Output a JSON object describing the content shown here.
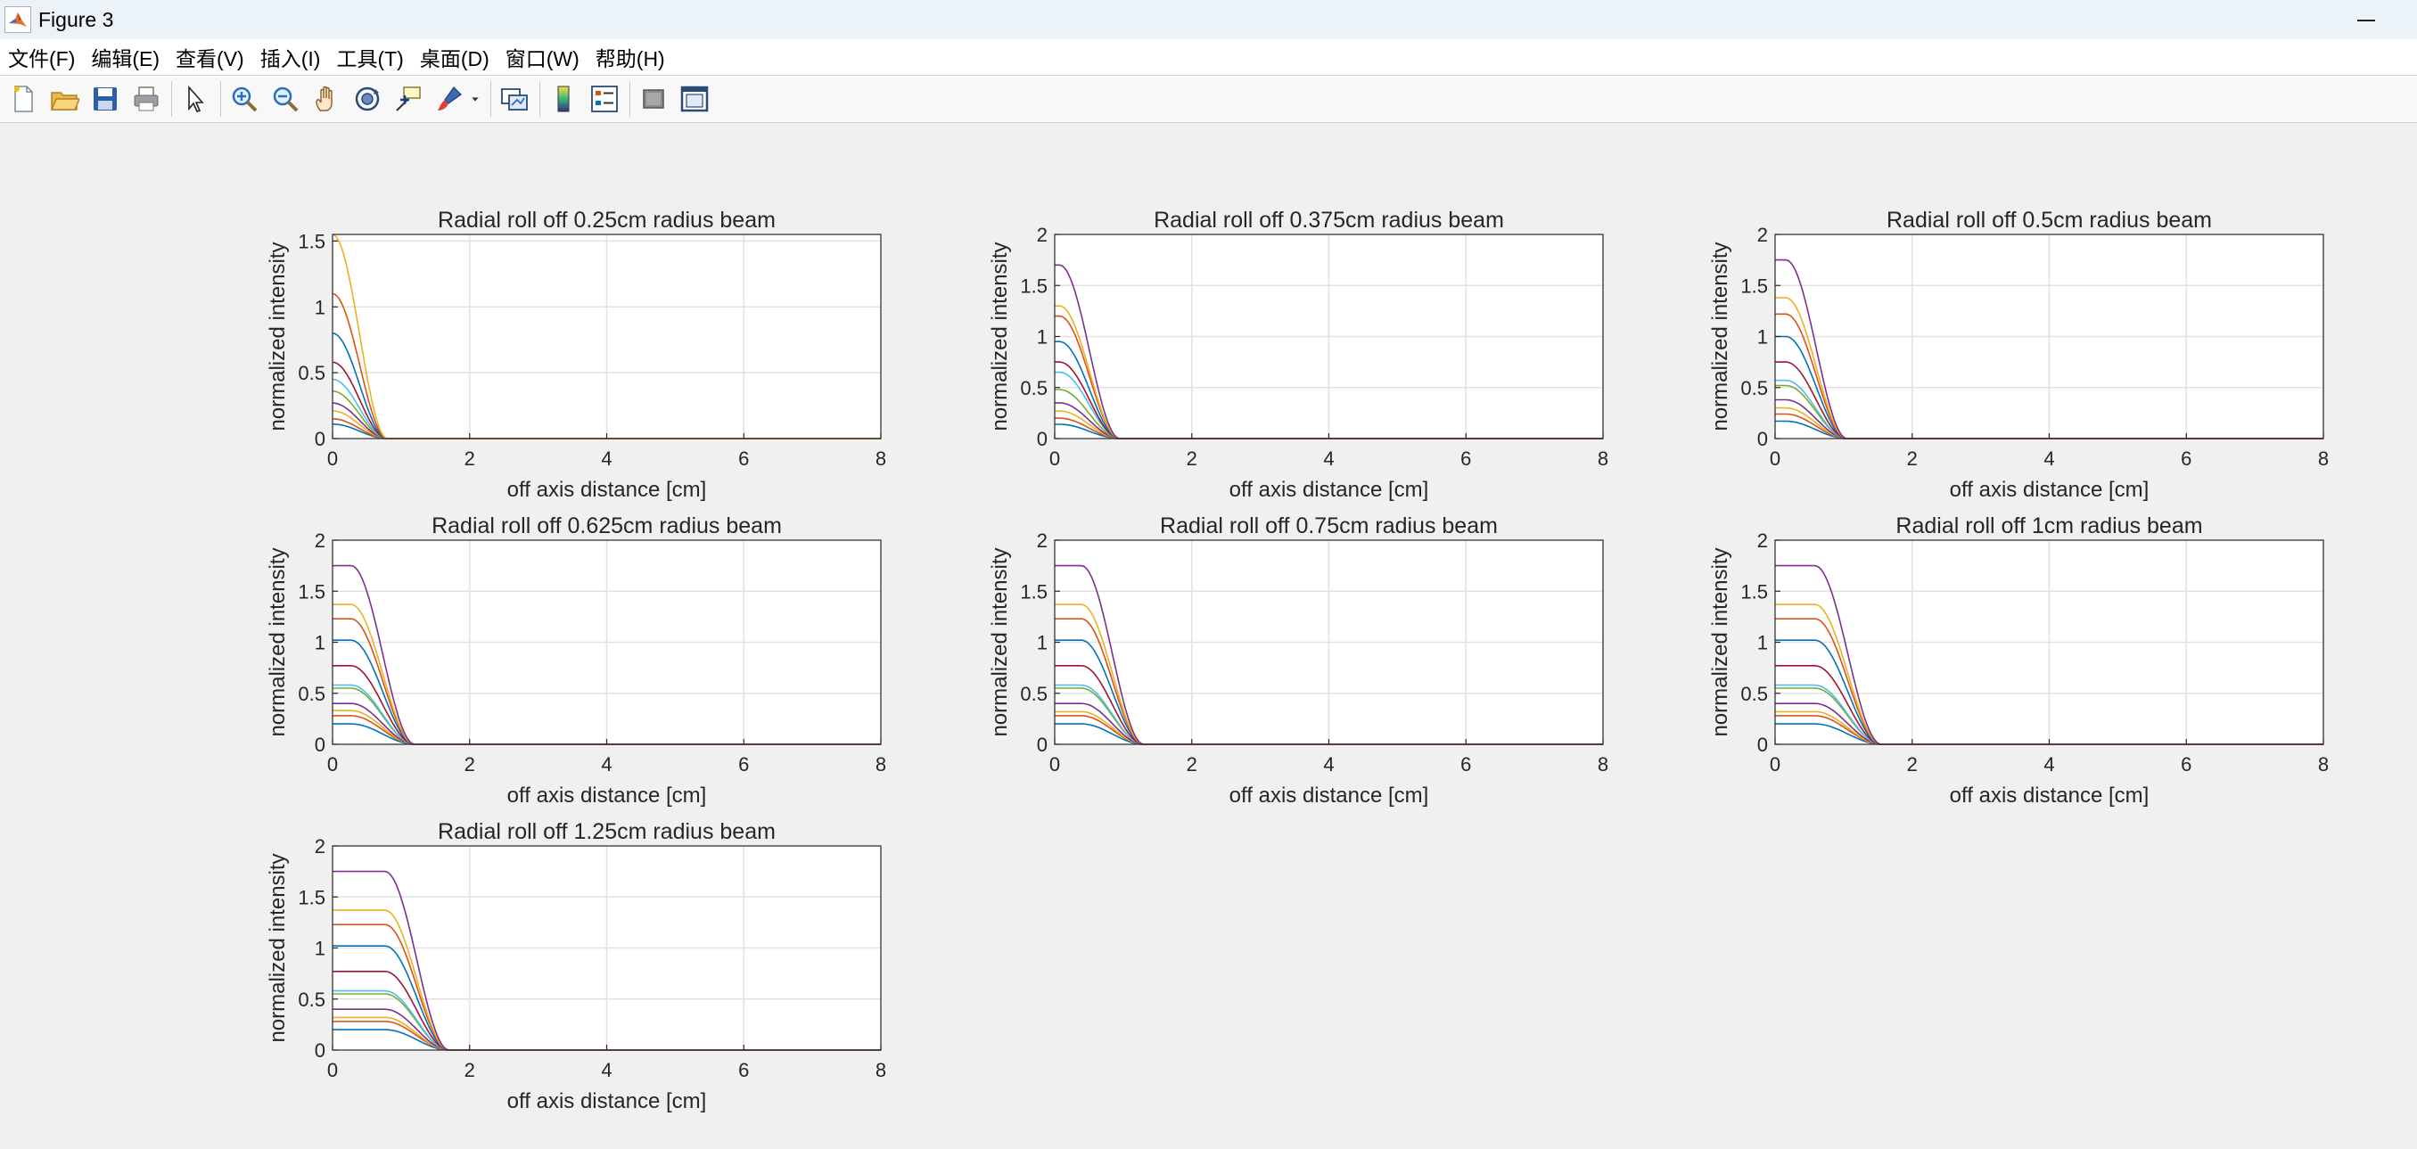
{
  "window": {
    "title": "Figure 3"
  },
  "menu": [
    "文件(F)",
    "编辑(E)",
    "查看(V)",
    "插入(I)",
    "工具(T)",
    "桌面(D)",
    "窗口(W)",
    "帮助(H)"
  ],
  "toolbar": [
    {
      "icon": "new-figure-icon"
    },
    {
      "icon": "open-file-icon"
    },
    {
      "icon": "save-icon"
    },
    {
      "icon": "print-icon"
    },
    {
      "sep": true
    },
    {
      "icon": "pointer-icon"
    },
    {
      "sep": true
    },
    {
      "icon": "zoom-in-icon"
    },
    {
      "icon": "zoom-out-icon"
    },
    {
      "icon": "pan-hand-icon"
    },
    {
      "icon": "rotate-3d-icon"
    },
    {
      "icon": "data-cursor-icon"
    },
    {
      "icon": "brush-icon"
    },
    {
      "icon": "dropdown-arrow-icon"
    },
    {
      "sep": true
    },
    {
      "icon": "link-plot-icon"
    },
    {
      "sep": true
    },
    {
      "icon": "colorbar-icon"
    },
    {
      "icon": "legend-icon"
    },
    {
      "sep": true
    },
    {
      "icon": "hide-plot-tools-icon"
    },
    {
      "icon": "show-plot-tools-icon"
    }
  ],
  "series_colors": [
    "#0072BD",
    "#D95319",
    "#EDB120",
    "#7E2F8E",
    "#77AC30",
    "#4DBEEE",
    "#A2142F"
  ],
  "chart_data": [
    {
      "type": "line",
      "title": "Radial roll off 0.25cm radius beam",
      "xlabel": "off axis distance [cm]",
      "ylabel": "normalized intensity",
      "xlim": [
        0,
        8
      ],
      "ylim": [
        0,
        1.55
      ],
      "xticks": [
        0,
        2,
        4,
        6,
        8
      ],
      "yticks": [
        0,
        0.5,
        1,
        1.5
      ],
      "ytick_labels": [
        "0",
        "0.5",
        "1",
        "1.5"
      ],
      "grid": true,
      "rolloff_end": 0.8,
      "series_peaks": [
        0.11,
        0.15,
        0.21,
        0.27,
        0.36,
        0.45,
        0.58,
        0.8,
        1.1,
        1.55
      ]
    },
    {
      "type": "line",
      "title": "Radial roll off 0.375cm radius beam",
      "xlabel": "off axis distance [cm]",
      "ylabel": "normalized intensity",
      "xlim": [
        0,
        8
      ],
      "ylim": [
        0,
        2
      ],
      "xticks": [
        0,
        2,
        4,
        6,
        8
      ],
      "yticks": [
        0,
        0.5,
        1,
        1.5,
        2
      ],
      "ytick_labels": [
        "0",
        "0.5",
        "1",
        "1.5",
        "2"
      ],
      "grid": true,
      "rolloff_end": 0.95,
      "series_peaks": [
        0.14,
        0.2,
        0.27,
        0.35,
        0.48,
        0.65,
        0.75,
        0.95,
        1.2,
        1.3,
        1.7
      ]
    },
    {
      "type": "line",
      "title": "Radial roll off 0.5cm radius beam",
      "xlabel": "off axis distance [cm]",
      "ylabel": "normalized intensity",
      "xlim": [
        0,
        8
      ],
      "ylim": [
        0,
        2
      ],
      "xticks": [
        0,
        2,
        4,
        6,
        8
      ],
      "yticks": [
        0,
        0.5,
        1,
        1.5,
        2
      ],
      "ytick_labels": [
        "0",
        "0.5",
        "1",
        "1.5",
        "2"
      ],
      "grid": true,
      "rolloff_end": 1.05,
      "series_peaks": [
        0.17,
        0.24,
        0.3,
        0.38,
        0.52,
        0.57,
        0.75,
        1.0,
        1.22,
        1.38,
        1.75
      ]
    },
    {
      "type": "line",
      "title": "Radial roll off 0.625cm radius beam",
      "xlabel": "off axis distance [cm]",
      "ylabel": "normalized intensity",
      "xlim": [
        0,
        8
      ],
      "ylim": [
        0,
        2
      ],
      "xticks": [
        0,
        2,
        4,
        6,
        8
      ],
      "yticks": [
        0,
        0.5,
        1,
        1.5,
        2
      ],
      "ytick_labels": [
        "0",
        "0.5",
        "1",
        "1.5",
        "2"
      ],
      "grid": true,
      "rolloff_end": 1.2,
      "series_peaks": [
        0.2,
        0.28,
        0.33,
        0.4,
        0.55,
        0.58,
        0.77,
        1.02,
        1.23,
        1.37,
        1.75
      ]
    },
    {
      "type": "line",
      "title": "Radial roll off 0.75cm radius beam",
      "xlabel": "off axis distance [cm]",
      "ylabel": "normalized intensity",
      "xlim": [
        0,
        8
      ],
      "ylim": [
        0,
        2
      ],
      "xticks": [
        0,
        2,
        4,
        6,
        8
      ],
      "yticks": [
        0,
        0.5,
        1,
        1.5,
        2
      ],
      "ytick_labels": [
        "0",
        "0.5",
        "1",
        "1.5",
        "2"
      ],
      "grid": true,
      "rolloff_end": 1.3,
      "series_peaks": [
        0.2,
        0.28,
        0.32,
        0.4,
        0.55,
        0.58,
        0.77,
        1.02,
        1.23,
        1.37,
        1.75
      ]
    },
    {
      "type": "line",
      "title": "Radial roll off 1cm radius beam",
      "xlabel": "off axis distance [cm]",
      "ylabel": "normalized intensity",
      "xlim": [
        0,
        8
      ],
      "ylim": [
        0,
        2
      ],
      "xticks": [
        0,
        2,
        4,
        6,
        8
      ],
      "yticks": [
        0,
        0.5,
        1,
        1.5,
        2
      ],
      "ytick_labels": [
        "0",
        "0.5",
        "1",
        "1.5",
        "2"
      ],
      "grid": true,
      "rolloff_end": 1.55,
      "series_peaks": [
        0.2,
        0.28,
        0.32,
        0.4,
        0.55,
        0.58,
        0.77,
        1.02,
        1.23,
        1.37,
        1.75
      ]
    },
    {
      "type": "line",
      "title": "Radial roll off 1.25cm radius beam",
      "xlabel": "off axis distance [cm]",
      "ylabel": "normalized intensity",
      "xlim": [
        0,
        8
      ],
      "ylim": [
        0,
        2
      ],
      "xticks": [
        0,
        2,
        4,
        6,
        8
      ],
      "yticks": [
        0,
        0.5,
        1,
        1.5,
        2
      ],
      "ytick_labels": [
        "0",
        "0.5",
        "1",
        "1.5",
        "2"
      ],
      "grid": true,
      "rolloff_end": 1.7,
      "series_peaks": [
        0.2,
        0.28,
        0.32,
        0.4,
        0.55,
        0.58,
        0.77,
        1.02,
        1.23,
        1.37,
        1.75
      ]
    }
  ]
}
